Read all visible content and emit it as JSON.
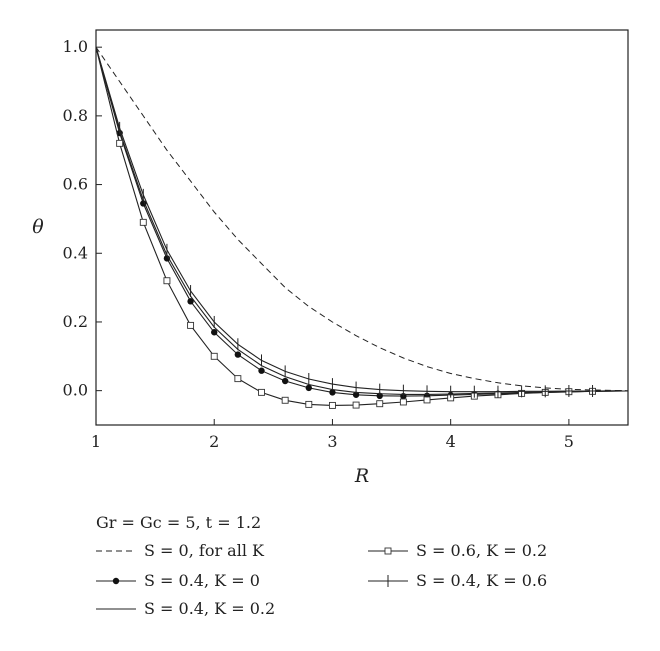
{
  "chart_data": {
    "type": "line",
    "xlabel": "R",
    "ylabel": "θ",
    "xlim": [
      1,
      5.5
    ],
    "ylim": [
      -0.1,
      1.05
    ],
    "x_ticks": [
      "1",
      "2",
      "3",
      "4",
      "5"
    ],
    "y_ticks": [
      "0.0",
      "0.2",
      "0.4",
      "0.6",
      "0.8",
      "1.0"
    ],
    "legend_title": "Gr = Gc = 5, t = 1.2",
    "legend_position": "bottom",
    "series": [
      {
        "name": "S = 0, for all K",
        "style": "dashed",
        "marker": "none",
        "x": [
          1.0,
          1.2,
          1.4,
          1.6,
          1.8,
          2.0,
          2.2,
          2.4,
          2.6,
          2.8,
          3.0,
          3.2,
          3.4,
          3.6,
          3.8,
          4.0,
          4.2,
          4.4,
          4.6,
          4.8,
          5.0,
          5.2,
          5.5
        ],
        "y": [
          1.0,
          0.9,
          0.8,
          0.7,
          0.61,
          0.52,
          0.44,
          0.37,
          0.3,
          0.245,
          0.2,
          0.16,
          0.125,
          0.095,
          0.07,
          0.05,
          0.035,
          0.023,
          0.014,
          0.008,
          0.004,
          0.002,
          0.0
        ]
      },
      {
        "name": "S = 0.4, K = 0",
        "style": "solid",
        "marker": "filled-circle",
        "x": [
          1.0,
          1.2,
          1.4,
          1.6,
          1.8,
          2.0,
          2.2,
          2.4,
          2.6,
          2.8,
          3.0,
          3.2,
          3.4,
          3.6,
          3.8,
          4.0,
          4.2,
          4.4,
          4.6,
          4.8,
          5.0,
          5.2,
          5.4
        ],
        "y": [
          1.0,
          0.75,
          0.545,
          0.385,
          0.26,
          0.17,
          0.105,
          0.058,
          0.028,
          0.008,
          -0.005,
          -0.012,
          -0.015,
          -0.016,
          -0.015,
          -0.013,
          -0.011,
          -0.009,
          -0.007,
          -0.005,
          -0.004,
          -0.002,
          -0.001
        ]
      },
      {
        "name": "S = 0.4, K = 0.2",
        "style": "solid",
        "marker": "none",
        "x": [
          1.0,
          1.2,
          1.4,
          1.6,
          1.8,
          2.0,
          2.2,
          2.4,
          2.6,
          2.8,
          3.0,
          3.2,
          3.4,
          3.6,
          3.8,
          4.0,
          4.2,
          4.4,
          4.6,
          4.8,
          5.0,
          5.2,
          5.5
        ],
        "y": [
          1.0,
          0.755,
          0.555,
          0.395,
          0.275,
          0.185,
          0.12,
          0.073,
          0.041,
          0.018,
          0.003,
          -0.005,
          -0.009,
          -0.011,
          -0.011,
          -0.01,
          -0.008,
          -0.007,
          -0.005,
          -0.004,
          -0.003,
          -0.002,
          -0.001
        ]
      },
      {
        "name": "S = 0.6, K = 0.2",
        "style": "solid",
        "marker": "open-square",
        "x": [
          1.0,
          1.2,
          1.4,
          1.6,
          1.8,
          2.0,
          2.2,
          2.4,
          2.6,
          2.8,
          3.0,
          3.2,
          3.4,
          3.6,
          3.8,
          4.0,
          4.2,
          4.4,
          4.6,
          4.8,
          5.0,
          5.2,
          5.45
        ],
        "y": [
          1.0,
          0.72,
          0.49,
          0.32,
          0.19,
          0.1,
          0.035,
          -0.005,
          -0.028,
          -0.04,
          -0.043,
          -0.042,
          -0.038,
          -0.033,
          -0.027,
          -0.021,
          -0.016,
          -0.012,
          -0.008,
          -0.005,
          -0.003,
          -0.002,
          -0.001
        ]
      },
      {
        "name": "S = 0.4, K = 0.6",
        "style": "solid",
        "marker": "plus",
        "x": [
          1.0,
          1.2,
          1.4,
          1.6,
          1.8,
          2.0,
          2.2,
          2.4,
          2.6,
          2.8,
          3.0,
          3.2,
          3.4,
          3.6,
          3.8,
          4.0,
          4.2,
          4.4,
          4.6,
          4.8,
          5.0,
          5.2,
          5.45
        ],
        "y": [
          1.0,
          0.765,
          0.57,
          0.41,
          0.29,
          0.2,
          0.135,
          0.088,
          0.056,
          0.034,
          0.019,
          0.009,
          0.003,
          0.0,
          -0.002,
          -0.003,
          -0.003,
          -0.003,
          -0.002,
          -0.002,
          -0.001,
          -0.001,
          0.0
        ]
      }
    ]
  }
}
